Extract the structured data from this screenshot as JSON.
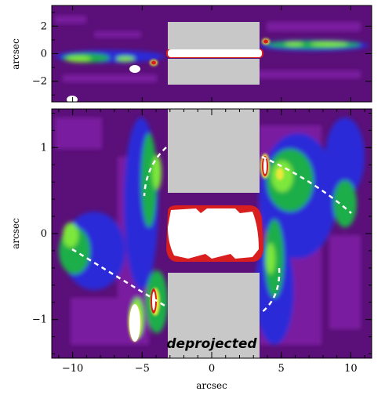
{
  "colors": {
    "background": "#5a1078",
    "level_1": "#7a1fa0",
    "level_2": "#2a2ad8",
    "level_3": "#1fae4a",
    "level_4": "#7de83a",
    "level_5": "#e8e83a",
    "level_6": "#d81e1e",
    "peak": "#ffffff",
    "mask": "#c8c8c8",
    "dashed_line": "#ffffff"
  },
  "top_panel": {
    "ylabel": "arcsec",
    "y_ticks": [
      "2",
      "0",
      "−2"
    ],
    "ylim": [
      -3.5,
      3.5
    ]
  },
  "bottom_panel": {
    "ylabel": "arcsec",
    "xlabel": "arcsec",
    "y_ticks": [
      "1",
      "0",
      "−1"
    ],
    "x_ticks": [
      "−10",
      "−5",
      "0",
      "5",
      "10"
    ],
    "xlim": [
      -11.5,
      11.5
    ],
    "ylim": [
      -1.45,
      1.45
    ],
    "annotation": "deprojected"
  }
}
